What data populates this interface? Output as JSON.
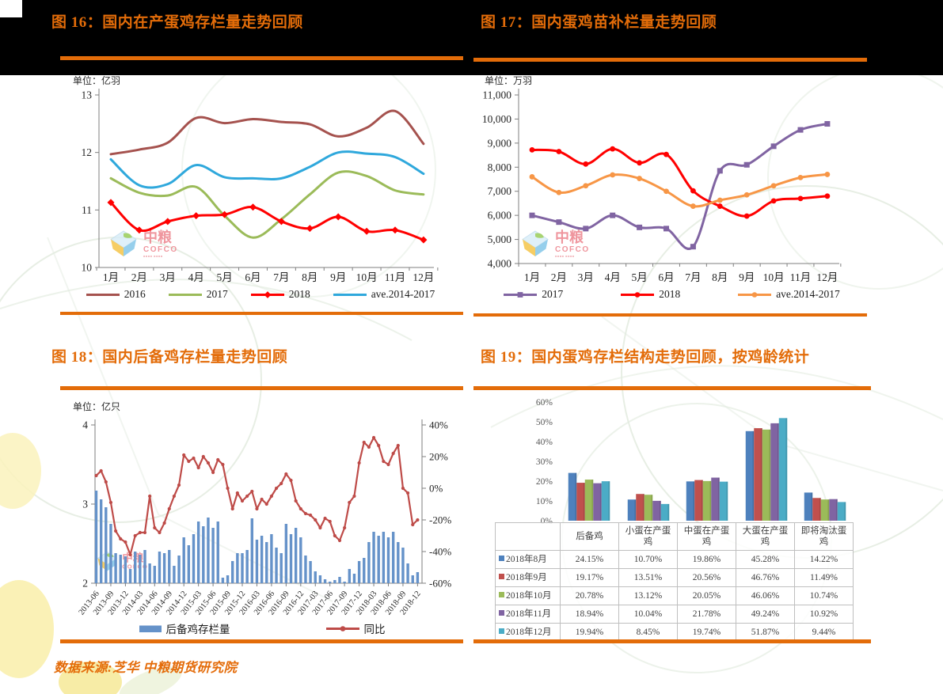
{
  "page": {
    "source_note": "数据来源:芝华 中粮期货研究院",
    "accent_color": "#E36C09",
    "logo": {
      "cn": "中粮",
      "en": "COFCO"
    }
  },
  "chart_data": [
    {
      "id": "fig16",
      "type": "line",
      "title": "图 16：国内在产蛋鸡存栏量走势回顾",
      "unit": "单位：亿羽",
      "x": [
        "1月",
        "2月",
        "3月",
        "4月",
        "5月",
        "6月",
        "7月",
        "8月",
        "9月",
        "10月",
        "11月",
        "12月"
      ],
      "ylim": [
        10,
        13
      ],
      "yticks": [
        {
          "label": "13",
          "value": 13
        },
        {
          "label": "12",
          "value": 12
        },
        {
          "label": "11",
          "value": 11
        },
        {
          "label": "10",
          "value": 10
        }
      ],
      "grid": false,
      "legend_position": "bottom",
      "series": [
        {
          "name": "2016",
          "color": "#A5524E",
          "marker": "none",
          "values": [
            11.97,
            12.05,
            12.17,
            12.6,
            12.51,
            12.58,
            12.53,
            12.49,
            12.28,
            12.43,
            12.72,
            12.15
          ]
        },
        {
          "name": "2017",
          "color": "#9BBB59",
          "marker": "none",
          "values": [
            11.55,
            11.3,
            11.25,
            11.4,
            10.9,
            10.52,
            10.84,
            11.27,
            11.65,
            11.59,
            11.34,
            11.27
          ]
        },
        {
          "name": "2018",
          "color": "#FF0000",
          "marker": "diamond",
          "values": [
            11.13,
            10.65,
            10.8,
            10.9,
            10.92,
            11.05,
            10.8,
            10.68,
            10.88,
            10.63,
            10.65,
            10.48
          ]
        },
        {
          "name": "ave.2014-2017",
          "color": "#2FA8DC",
          "marker": "none",
          "values": [
            11.88,
            11.43,
            11.45,
            11.78,
            11.57,
            11.55,
            11.55,
            11.75,
            12.0,
            11.98,
            11.92,
            11.63
          ]
        }
      ]
    },
    {
      "id": "fig17",
      "type": "line",
      "title": "图 17：国内蛋鸡苗补栏量走势回顾",
      "unit": "单位：万羽",
      "x": [
        "1月",
        "2月",
        "3月",
        "4月",
        "5月",
        "6月",
        "7月",
        "8月",
        "9月",
        "10月",
        "11月",
        "12月"
      ],
      "ylim": [
        4000,
        11000
      ],
      "yticks": [
        {
          "label": "11,000",
          "value": 11000
        },
        {
          "label": "10,000",
          "value": 10000
        },
        {
          "label": "9,000",
          "value": 9000
        },
        {
          "label": "8,000",
          "value": 8000
        },
        {
          "label": "7,000",
          "value": 7000
        },
        {
          "label": "6,000",
          "value": 6000
        },
        {
          "label": "5,000",
          "value": 5000
        },
        {
          "label": "4,000",
          "value": 4000
        }
      ],
      "grid": false,
      "legend_position": "bottom",
      "series": [
        {
          "name": "2017",
          "color": "#8064A2",
          "marker": "square",
          "values": [
            6000,
            5720,
            5450,
            6000,
            5500,
            5450,
            4700,
            7850,
            8100,
            8870,
            9550,
            9800
          ]
        },
        {
          "name": "2018",
          "color": "#FF0000",
          "marker": "circle",
          "values": [
            8720,
            8650,
            8130,
            8760,
            8180,
            8530,
            7020,
            6380,
            5970,
            6600,
            6700,
            6800
          ]
        },
        {
          "name": "ave.2014-2017",
          "color": "#F79646",
          "marker": "circle",
          "values": [
            7600,
            6950,
            7230,
            7680,
            7530,
            7000,
            6380,
            6630,
            6850,
            7230,
            7570,
            7700
          ]
        }
      ]
    },
    {
      "id": "fig18",
      "type": "bar-line",
      "title": "图 18：国内后备鸡存栏量走势回顾",
      "unit": "单位：亿只",
      "x_tick_labels": [
        "2013-06",
        "2013-09",
        "2013-12",
        "2014-03",
        "2014-06",
        "2014-09",
        "2014-12",
        "2015-03",
        "2015-06",
        "2015-09",
        "2015-12",
        "2016-03",
        "2016-06",
        "2016-09",
        "2016-12",
        "2017-03",
        "2017-06",
        "2017-09",
        "2017-12",
        "2018-03",
        "2018-06",
        "2018-09",
        "2018-12"
      ],
      "left_axis": {
        "ylim": [
          2,
          4
        ],
        "ticks": [
          {
            "label": "4",
            "value": 4
          },
          {
            "label": "3",
            "value": 3
          },
          {
            "label": "2",
            "value": 2
          }
        ]
      },
      "right_axis": {
        "ylim": [
          -60,
          40
        ],
        "ticks": [
          {
            "label": "40%",
            "value": 40
          },
          {
            "label": "20%",
            "value": 20
          },
          {
            "label": "0%",
            "value": 0
          },
          {
            "label": "-20%",
            "value": -20
          },
          {
            "label": "-40%",
            "value": -40
          },
          {
            "label": "-60%",
            "value": -60
          }
        ]
      },
      "bars": {
        "name": "后备鸡存栏量",
        "color": "#6592C9",
        "values": [
          3.17,
          3.06,
          2.96,
          2.75,
          2.38,
          2.36,
          2.34,
          2.18,
          2.4,
          2.36,
          2.42,
          2.25,
          2.22,
          2.4,
          2.38,
          2.42,
          2.22,
          2.35,
          2.58,
          2.48,
          2.62,
          2.78,
          2.72,
          2.83,
          2.7,
          2.78,
          2.07,
          2.1,
          2.28,
          2.38,
          2.38,
          2.42,
          2.82,
          2.55,
          2.6,
          2.52,
          2.62,
          2.45,
          2.38,
          2.75,
          2.62,
          2.7,
          2.58,
          2.35,
          2.28,
          2.15,
          2.1,
          2.05,
          2.02,
          2.04,
          2.08,
          2.02,
          2.18,
          2.12,
          2.28,
          2.32,
          2.52,
          2.65,
          2.6,
          2.65,
          2.58,
          2.65,
          2.52,
          2.45,
          2.25,
          2.1,
          2.14
        ]
      },
      "line": {
        "name": "同比",
        "color": "#BE4B48",
        "values": [
          8,
          11,
          4,
          -9,
          -27,
          -32,
          -34,
          -42,
          -30,
          -28,
          -28,
          -5,
          -25,
          -28,
          -22,
          -13,
          -5,
          2,
          21,
          17,
          19,
          13,
          20,
          16,
          10,
          18,
          15,
          0,
          -13,
          -3,
          -8,
          -5,
          -2,
          -13,
          -7,
          -10,
          -5,
          0,
          3,
          9,
          5,
          -8,
          -13,
          -16,
          -17,
          -20,
          -25,
          -19,
          -21,
          -30,
          -33,
          -25,
          -9,
          -5,
          16,
          29,
          26,
          32,
          27,
          17,
          15,
          22,
          27,
          0,
          -3,
          -23,
          -20
        ]
      }
    },
    {
      "id": "fig19",
      "type": "bar",
      "title": "图 19：国内蛋鸡存栏结构走势回顾，按鸡龄统计",
      "categories": [
        "后备鸡",
        "小蛋在产蛋鸡",
        "中蛋在产蛋鸡",
        "大蛋在产蛋鸡",
        "即将淘汰蛋鸡"
      ],
      "yticks": [
        {
          "label": "60%",
          "value": 60
        },
        {
          "label": "50%",
          "value": 50
        },
        {
          "label": "40%",
          "value": 40
        },
        {
          "label": "30%",
          "value": 30
        },
        {
          "label": "20%",
          "value": 20
        },
        {
          "label": "10%",
          "value": 10
        },
        {
          "label": "0%",
          "value": 0
        }
      ],
      "value_suffix": "%",
      "series": [
        {
          "name": "2018年8月",
          "color": "#4E81BD",
          "values": [
            24.15,
            10.7,
            19.86,
            45.28,
            14.22
          ]
        },
        {
          "name": "2018年9月",
          "color": "#C0504D",
          "values": [
            19.17,
            13.51,
            20.56,
            46.76,
            11.49
          ]
        },
        {
          "name": "2018年10月",
          "color": "#9BBB59",
          "values": [
            20.78,
            13.12,
            20.05,
            46.06,
            10.74
          ]
        },
        {
          "name": "2018年11月",
          "color": "#8064A2",
          "values": [
            18.94,
            10.04,
            21.78,
            49.24,
            10.92
          ]
        },
        {
          "name": "2018年12月",
          "color": "#4BACC6",
          "values": [
            19.94,
            8.45,
            19.74,
            51.87,
            9.44
          ]
        }
      ]
    }
  ]
}
